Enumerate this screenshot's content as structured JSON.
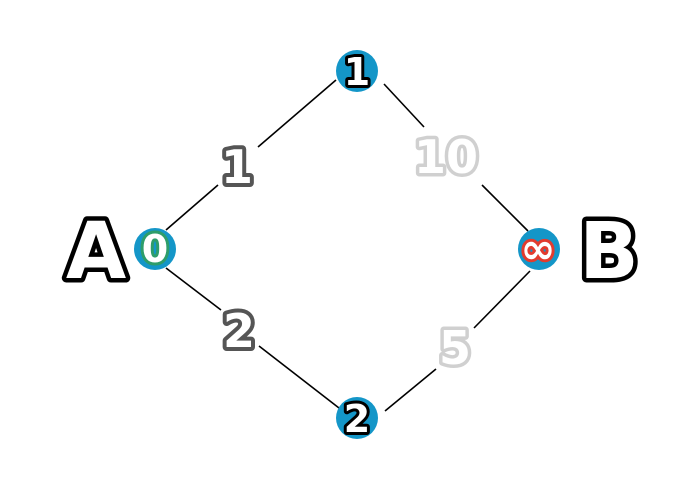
{
  "graph": {
    "colors": {
      "node_fill": "#1496c8",
      "edge": "#000000",
      "endpoint_outline": "#000000",
      "active_weight_outline": "#555555",
      "inactive_weight_outline": "#d0d0d0",
      "start_distance_outline": "#2e9d6a",
      "infinite_distance_outline": "#e23b2e"
    },
    "endpoints": {
      "start": "A",
      "end": "B"
    },
    "nodes": {
      "start": {
        "distance": "0"
      },
      "top": {
        "distance": "1"
      },
      "bottom": {
        "distance": "2"
      },
      "end": {
        "distance": "∞"
      }
    },
    "edges": {
      "start_top": {
        "weight": "1",
        "state": "active"
      },
      "start_bottom": {
        "weight": "2",
        "state": "active"
      },
      "top_end": {
        "weight": "10",
        "state": "inactive"
      },
      "bottom_end": {
        "weight": "5",
        "state": "inactive"
      }
    }
  }
}
